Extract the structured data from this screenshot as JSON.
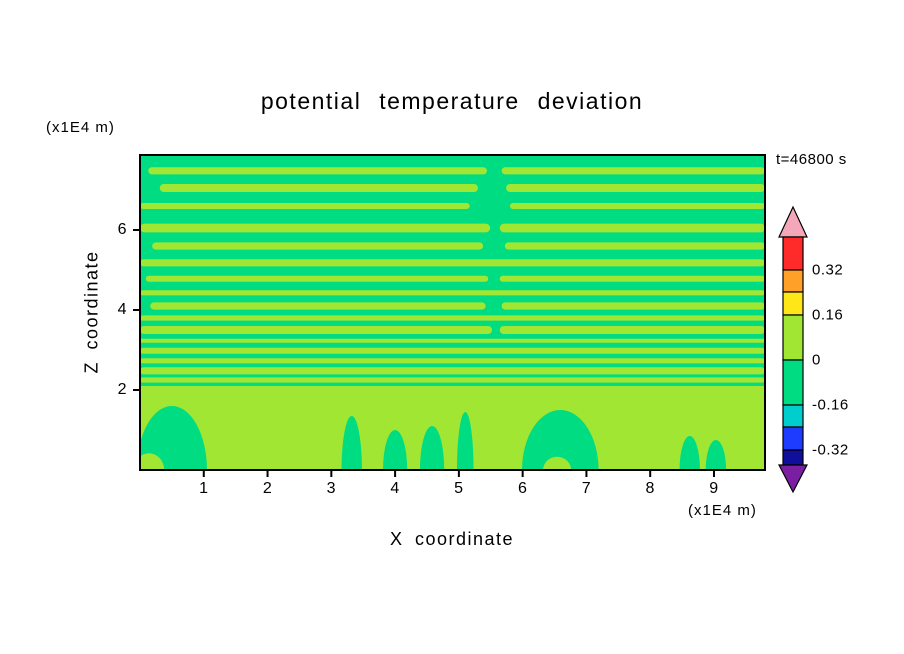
{
  "title": "potential temperature deviation",
  "annotations": {
    "time_label": "t=46800 s",
    "y_axis_unit": "(x1E4 m)",
    "x_axis_unit": "(x1E4 m)"
  },
  "axes": {
    "x_label": "X coordinate",
    "y_label": "Z coordinate",
    "x_ticks": [
      "1",
      "2",
      "3",
      "4",
      "5",
      "6",
      "7",
      "8",
      "9"
    ],
    "y_ticks": [
      "2",
      "4",
      "6"
    ]
  },
  "chart_data": {
    "type": "heatmap",
    "subtype": "filled-contour",
    "title": "potential temperature deviation",
    "xlabel": "X coordinate (x1E4 m)",
    "ylabel": "Z coordinate (x1E4 m)",
    "time_annotation": "t=46800 s",
    "x_range": [
      0,
      9.8
    ],
    "z_range": [
      0,
      7.875
    ],
    "x_tick_values": [
      1,
      2,
      3,
      4,
      5,
      6,
      7,
      8,
      9
    ],
    "z_tick_values": [
      2,
      4,
      6
    ],
    "grid": false,
    "legend_position": "right-colorbar",
    "contour_levels": [
      -0.32,
      -0.16,
      0,
      0.16,
      0.32
    ],
    "colorbar": {
      "tick_labels": [
        "0.32",
        "0.16",
        "0",
        "-0.16",
        "-0.32"
      ],
      "segment_colors": [
        "#FF2B2B",
        "#FFA028",
        "#FFE619",
        "#A0E632",
        "#00DC82",
        "#00CDCD",
        "#1E3CFF",
        "#0F0F9B"
      ],
      "segment_names": [
        "red",
        "orange",
        "yellow",
        "green-yellow",
        "spring-green",
        "cyan",
        "blue",
        "navy"
      ],
      "arrow_top_color": "#F4A7B9",
      "arrow_bottom_color": "#7A1FA2"
    },
    "field": {
      "background_color": "#00DC82",
      "band_color": "#A0E632",
      "background_value_range": [
        -0.16,
        0
      ],
      "band_value_range": [
        0,
        0.16
      ],
      "stripes": [
        {
          "z": 7.48,
          "t": 0.18,
          "segs": [
            [
              0.13,
              5.44
            ],
            [
              5.67,
              9.8
            ]
          ]
        },
        {
          "z": 7.05,
          "t": 0.2,
          "segs": [
            [
              0.31,
              5.3
            ],
            [
              5.74,
              9.8
            ]
          ]
        },
        {
          "z": 6.6,
          "t": 0.15,
          "segs": [
            [
              0.0,
              5.17
            ],
            [
              5.8,
              9.8
            ]
          ]
        },
        {
          "z": 6.05,
          "t": 0.22,
          "segs": [
            [
              0.0,
              5.49
            ],
            [
              5.64,
              9.8
            ]
          ]
        },
        {
          "z": 5.6,
          "t": 0.18,
          "segs": [
            [
              0.19,
              5.38
            ],
            [
              5.72,
              9.8
            ]
          ]
        },
        {
          "z": 5.18,
          "t": 0.18,
          "segs": [
            [
              0.0,
              9.8
            ]
          ]
        },
        {
          "z": 4.78,
          "t": 0.15,
          "segs": [
            [
              0.09,
              5.46
            ],
            [
              5.64,
              9.8
            ]
          ]
        },
        {
          "z": 4.43,
          "t": 0.13,
          "segs": [
            [
              0.0,
              9.8
            ]
          ]
        },
        {
          "z": 4.1,
          "t": 0.18,
          "segs": [
            [
              0.16,
              5.42
            ],
            [
              5.67,
              9.8
            ]
          ]
        },
        {
          "z": 3.8,
          "t": 0.13,
          "segs": [
            [
              0.0,
              9.8
            ]
          ]
        },
        {
          "z": 3.5,
          "t": 0.2,
          "segs": [
            [
              0.0,
              5.52
            ],
            [
              5.64,
              9.8
            ]
          ]
        },
        {
          "z": 3.23,
          "t": 0.1,
          "segs": [
            [
              0.0,
              9.8
            ]
          ]
        },
        {
          "z": 2.98,
          "t": 0.15,
          "segs": [
            [
              0.0,
              9.8
            ]
          ]
        },
        {
          "z": 2.73,
          "t": 0.13,
          "segs": [
            [
              0.0,
              9.8
            ]
          ]
        },
        {
          "z": 2.48,
          "t": 0.18,
          "segs": [
            [
              0.0,
              9.8
            ]
          ]
        },
        {
          "z": 2.25,
          "t": 0.13,
          "segs": [
            [
              0.0,
              9.8
            ]
          ]
        }
      ],
      "surface_band": {
        "z_top": 2.1,
        "z_bottom": 0
      },
      "carves": [
        {
          "cx": 0.5,
          "rx": 0.55,
          "ry": 1.6
        },
        {
          "cx": 3.32,
          "rx": 0.16,
          "ry": 1.35
        },
        {
          "cx": 4.0,
          "rx": 0.19,
          "ry": 1.0
        },
        {
          "cx": 4.58,
          "rx": 0.19,
          "ry": 1.1
        },
        {
          "cx": 5.1,
          "rx": 0.13,
          "ry": 1.45
        },
        {
          "cx": 6.59,
          "rx": 0.6,
          "ry": 1.5
        },
        {
          "cx": 8.62,
          "rx": 0.16,
          "ry": 0.85
        },
        {
          "cx": 9.03,
          "rx": 0.16,
          "ry": 0.75
        }
      ],
      "bumps": [
        {
          "cx": 0.14,
          "rx": 0.24,
          "ry": 0.42
        },
        {
          "cx": 6.54,
          "rx": 0.22,
          "ry": 0.33
        }
      ]
    }
  }
}
